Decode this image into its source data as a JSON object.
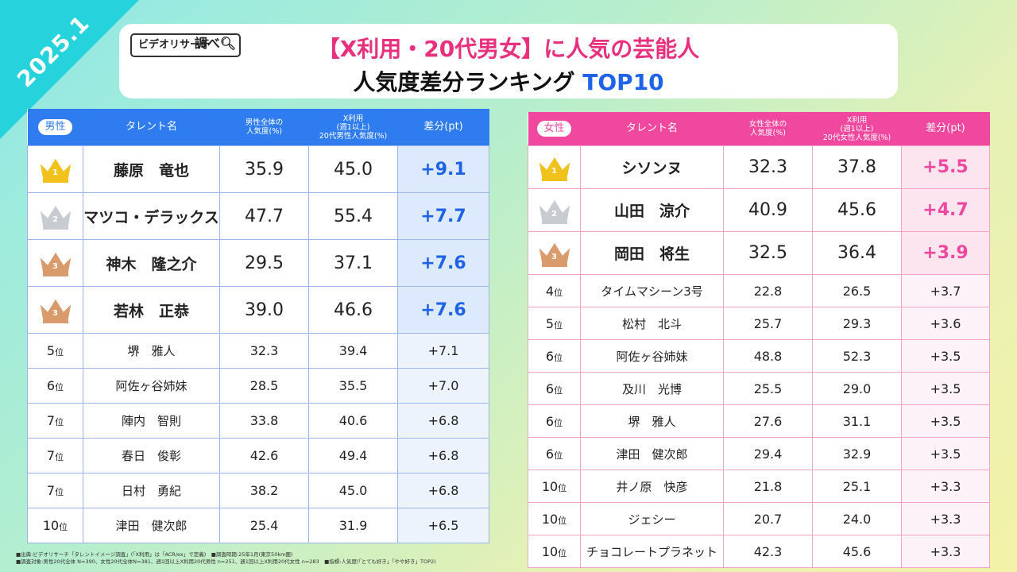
{
  "date_badge": "2025.1",
  "logo": {
    "text": "ビデオリサーチ",
    "tag": "調べ"
  },
  "title": {
    "line1": "【X利用・20代男女】に人気の芸能人",
    "line2_main": "人気度差分ランキング ",
    "line2_accent": "TOP10"
  },
  "male": {
    "gender_label": "男性",
    "headers": {
      "name": "タレント名",
      "overall": "男性全体の\n人気度(%)",
      "x_users": "X利用\n(週1以上)\n20代男性人気度(%)",
      "diff": "差分(pt)"
    },
    "top3": [
      {
        "crown": "1",
        "name": "藤原　竜也",
        "overall": "35.9",
        "x_users": "45.0",
        "diff": "+9.1"
      },
      {
        "crown": "2",
        "name": "マツコ・デラックス",
        "overall": "47.7",
        "x_users": "55.4",
        "diff": "+7.7"
      },
      {
        "crown": "3",
        "name": "神木　隆之介",
        "overall": "29.5",
        "x_users": "37.1",
        "diff": "+7.6"
      },
      {
        "crown": "3",
        "name": "若林　正恭",
        "overall": "39.0",
        "x_users": "46.6",
        "diff": "+7.6"
      }
    ],
    "rest": [
      {
        "rank": "5",
        "name": "堺　雅人",
        "overall": "32.3",
        "x_users": "39.4",
        "diff": "+7.1"
      },
      {
        "rank": "6",
        "name": "阿佐ヶ谷姉妹",
        "overall": "28.5",
        "x_users": "35.5",
        "diff": "+7.0"
      },
      {
        "rank": "7",
        "name": "陣内　智則",
        "overall": "33.8",
        "x_users": "40.6",
        "diff": "+6.8"
      },
      {
        "rank": "7",
        "name": "春日　俊彰",
        "overall": "42.6",
        "x_users": "49.4",
        "diff": "+6.8"
      },
      {
        "rank": "7",
        "name": "日村　勇紀",
        "overall": "38.2",
        "x_users": "45.0",
        "diff": "+6.8"
      },
      {
        "rank": "10",
        "name": "津田　健次郎",
        "overall": "25.4",
        "x_users": "31.9",
        "diff": "+6.5"
      }
    ]
  },
  "female": {
    "gender_label": "女性",
    "headers": {
      "name": "タレント名",
      "overall": "女性全体の\n人気度(%)",
      "x_users": "X利用\n(週1以上)\n20代女性人気度(%)",
      "diff": "差分(pt)"
    },
    "top3": [
      {
        "crown": "1",
        "name": "シソンヌ",
        "overall": "32.3",
        "x_users": "37.8",
        "diff": "+5.5"
      },
      {
        "crown": "2",
        "name": "山田　涼介",
        "overall": "40.9",
        "x_users": "45.6",
        "diff": "+4.7"
      },
      {
        "crown": "3",
        "name": "岡田　将生",
        "overall": "32.5",
        "x_users": "36.4",
        "diff": "+3.9"
      }
    ],
    "rest": [
      {
        "rank": "4",
        "name": "タイムマシーン3号",
        "overall": "22.8",
        "x_users": "26.5",
        "diff": "+3.7"
      },
      {
        "rank": "5",
        "name": "松村　北斗",
        "overall": "25.7",
        "x_users": "29.3",
        "diff": "+3.6"
      },
      {
        "rank": "6",
        "name": "阿佐ヶ谷姉妹",
        "overall": "48.8",
        "x_users": "52.3",
        "diff": "+3.5"
      },
      {
        "rank": "6",
        "name": "及川　光博",
        "overall": "25.5",
        "x_users": "29.0",
        "diff": "+3.5"
      },
      {
        "rank": "6",
        "name": "堺　雅人",
        "overall": "27.6",
        "x_users": "31.1",
        "diff": "+3.5"
      },
      {
        "rank": "6",
        "name": "津田　健次郎",
        "overall": "29.4",
        "x_users": "32.9",
        "diff": "+3.5"
      },
      {
        "rank": "10",
        "name": "井ノ原　快彦",
        "overall": "21.8",
        "x_users": "25.1",
        "diff": "+3.3"
      },
      {
        "rank": "10",
        "name": "ジェシー",
        "overall": "20.7",
        "x_users": "24.0",
        "diff": "+3.3"
      },
      {
        "rank": "10",
        "name": "チョコレートプラネット",
        "overall": "42.3",
        "x_users": "45.6",
        "diff": "+3.3"
      }
    ]
  },
  "rank_suffix": "位",
  "crown_colors": {
    "1": "#f1c21b",
    "2": "#c8ccd0",
    "3": "#d99a6c"
  },
  "footnotes": [
    "■出典:ビデオリサーチ「タレントイメージ調査」(「X利用」は「ACR/ex」で定義)　■調査時期:25年1月(東京50km圏)",
    "■調査対象:男性20代全体 N=390、女性20代全体N=381、週1回以上X利用20代男性 n=251、週1回以上X利用20代女性 n=283　■指標:人気度(「とても好き」「やや好き」TOP2)"
  ]
}
